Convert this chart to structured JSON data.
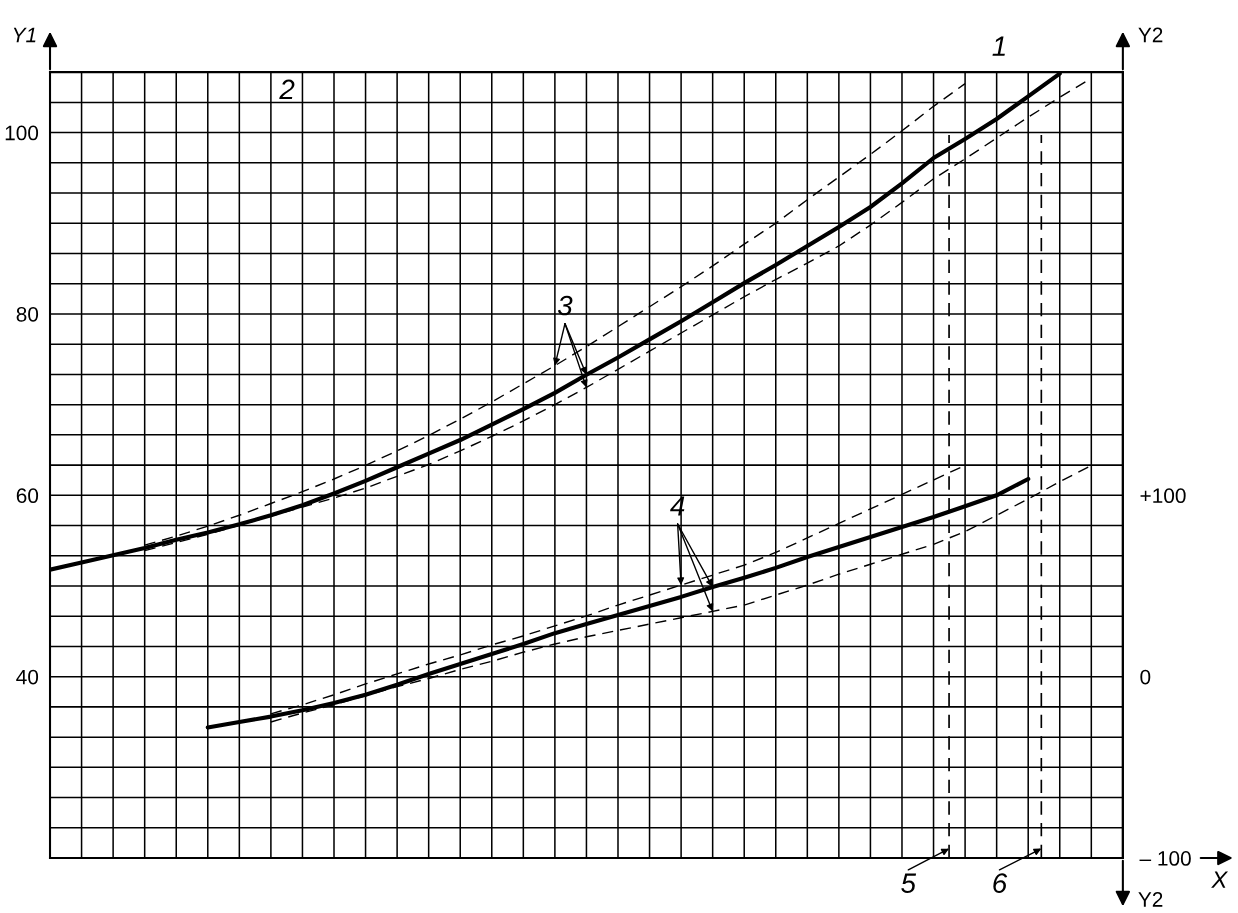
{
  "chart_data": {
    "type": "line",
    "xlabel": "X",
    "ylabel": "Y1",
    "y2label": "Y2",
    "categories": [
      null,
      null,
      null,
      null,
      null,
      null,
      null,
      null,
      null,
      null,
      null,
      null,
      null,
      null,
      null,
      null,
      null,
      null,
      null,
      null,
      null,
      null,
      null,
      null,
      null,
      null,
      null,
      null,
      null,
      null,
      null,
      null,
      null,
      null,
      null
    ],
    "ylim": [
      20,
      106.67
    ],
    "yticks": [
      {
        "value": 20,
        "label": null
      },
      {
        "value": 23.33,
        "label": null
      },
      {
        "value": 26.67,
        "label": null
      },
      {
        "value": 30,
        "label": null
      },
      {
        "value": 33.33,
        "label": null
      },
      {
        "value": 36.67,
        "label": null
      },
      40,
      {
        "value": 43.33,
        "label": null
      },
      {
        "value": 46.67,
        "label": null
      },
      {
        "value": 50,
        "label": null
      },
      {
        "value": 53.33,
        "label": null
      },
      {
        "value": 56.67,
        "label": null
      },
      60,
      {
        "value": 63.33,
        "label": null
      },
      {
        "value": 66.67,
        "label": null
      },
      {
        "value": 70,
        "label": null
      },
      {
        "value": 73.33,
        "label": null
      },
      {
        "value": 76.67,
        "label": null
      },
      80,
      {
        "value": 83.33,
        "label": null
      },
      {
        "value": 86.67,
        "label": null
      },
      {
        "value": 90,
        "label": null
      },
      {
        "value": 93.33,
        "label": null
      },
      {
        "value": 96.67,
        "label": null
      },
      100,
      {
        "value": 103.33,
        "label": null
      },
      {
        "value": 106.67,
        "label": null
      }
    ],
    "y2lim": [
      -100,
      333.35
    ],
    "y2ticks": [
      {
        "value": -100,
        "label": "– 100"
      },
      0,
      {
        "value": 100,
        "label": "+100"
      }
    ],
    "tick_labels": "y",
    "grid": true,
    "marker": "none",
    "series": [
      {
        "color": "#000000",
        "line_style": "solid",
        "values": [
          51.8,
          52.6,
          53.4,
          54.2,
          55.1,
          55.9,
          56.8,
          57.8,
          58.9,
          60.2,
          61.6,
          63.1,
          64.6,
          66.1,
          67.8,
          69.5,
          71.3,
          73.3,
          75.2,
          77.2,
          79.2,
          81.3,
          83.4,
          85.4,
          87.5,
          89.6,
          91.8,
          94.4,
          97.2,
          99.3,
          101.5,
          104.0,
          106.5,
          null,
          null
        ]
      },
      {
        "color": "#000000",
        "line_style": "dashed",
        "values": [
          null,
          null,
          null,
          54.5,
          55.5,
          56.6,
          57.8,
          59.1,
          60.4,
          61.8,
          63.3,
          64.9,
          66.6,
          68.4,
          70.3,
          72.3,
          74.3,
          76.4,
          78.6,
          80.8,
          83.0,
          85.3,
          87.7,
          90.0,
          92.6,
          95.1,
          97.6,
          100.2,
          102.9,
          105.4,
          null,
          null,
          null,
          null,
          null
        ]
      },
      {
        "color": "#000000",
        "line_style": "dashed",
        "values": [
          null,
          null,
          null,
          53.9,
          54.8,
          55.7,
          56.7,
          57.7,
          58.7,
          59.7,
          60.8,
          62.1,
          63.4,
          64.9,
          66.5,
          68.2,
          70.0,
          71.9,
          73.9,
          75.9,
          77.9,
          79.9,
          81.9,
          83.8,
          85.6,
          87.5,
          89.8,
          92.3,
          94.9,
          97.1,
          99.4,
          101.7,
          103.9,
          106.0,
          null
        ]
      },
      {
        "color": "#000000",
        "line_style": "solid",
        "values": [
          null,
          null,
          null,
          null,
          null,
          34.4,
          35.0,
          35.6,
          36.3,
          37.1,
          38.0,
          39.1,
          40.3,
          41.4,
          42.5,
          43.6,
          44.8,
          45.8,
          46.8,
          47.8,
          48.8,
          49.9,
          50.9,
          52.0,
          53.2,
          54.3,
          55.4,
          56.5,
          57.6,
          58.8,
          60.0,
          61.8,
          null,
          null,
          null
        ]
      },
      {
        "color": "#000000",
        "line_style": "dashed",
        "values": [
          null,
          null,
          null,
          null,
          null,
          null,
          null,
          35.9,
          36.9,
          38.0,
          39.2,
          40.3,
          41.4,
          42.4,
          43.5,
          44.5,
          45.6,
          46.7,
          47.9,
          49.0,
          50.1,
          51.2,
          52.3,
          53.7,
          55.3,
          56.9,
          58.5,
          60.1,
          61.7,
          63.3,
          null,
          null,
          null,
          null,
          null
        ]
      },
      {
        "color": "#000000",
        "line_style": "dashed",
        "values": [
          null,
          null,
          null,
          null,
          null,
          null,
          null,
          35.0,
          36.0,
          36.9,
          37.9,
          38.9,
          39.8,
          40.8,
          41.7,
          42.7,
          43.6,
          44.4,
          45.1,
          45.8,
          46.5,
          47.2,
          47.9,
          49.0,
          50.1,
          51.3,
          52.4,
          53.5,
          54.6,
          56.0,
          57.8,
          59.6,
          61.5,
          63.3,
          null
        ]
      }
    ],
    "annotations": [
      "1",
      "2",
      "3",
      "4",
      "5",
      "6"
    ]
  }
}
